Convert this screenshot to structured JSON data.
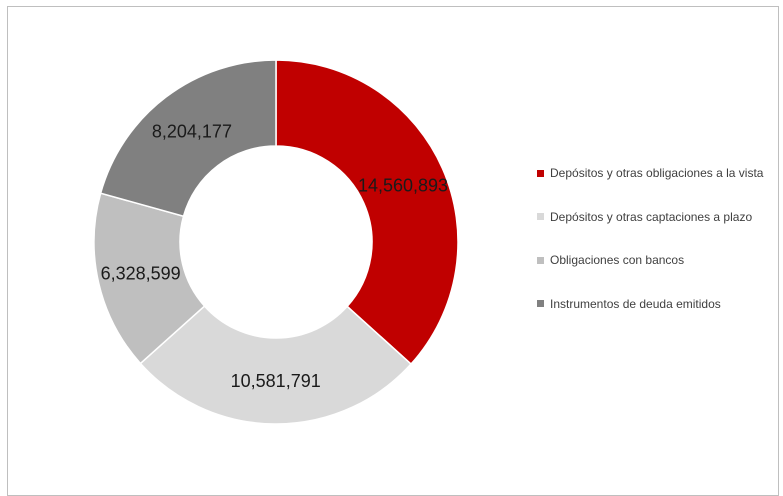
{
  "chart_data": {
    "type": "pie",
    "variant": "donut",
    "categories": [
      "Depósitos y otras obligaciones a la vista",
      "Depósitos y otras captaciones a plazo",
      "Obligaciones con bancos",
      "Instrumentos de deuda emitidos"
    ],
    "values": [
      14560893,
      10581791,
      6328599,
      8204177
    ],
    "data_labels": [
      "14,560,893",
      "10,581,791",
      "6,328,599",
      "8,204,177"
    ],
    "colors": [
      "#c00000",
      "#d9d9d9",
      "#bfbfbf",
      "#808080"
    ],
    "title": "",
    "legend_position": "right"
  }
}
